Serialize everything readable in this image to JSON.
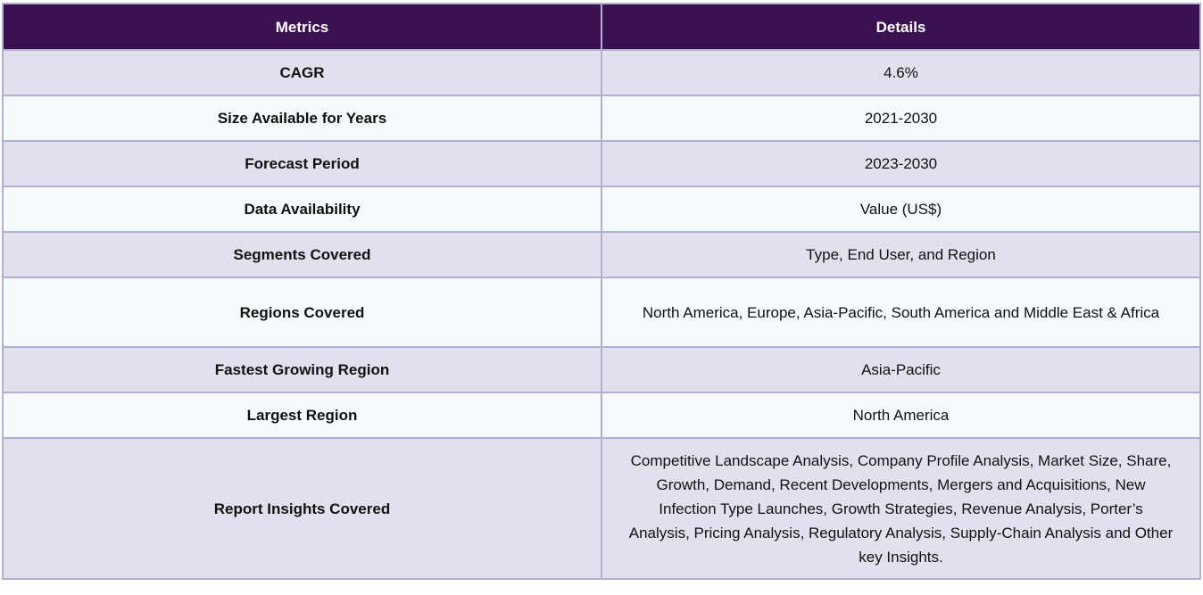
{
  "table": {
    "headers": [
      "Metrics",
      "Details"
    ],
    "rows": [
      {
        "metric": "CAGR",
        "details": "4.6%"
      },
      {
        "metric": "Size Available for Years",
        "details": "2021-2030"
      },
      {
        "metric": "Forecast Period",
        "details": "2023-2030"
      },
      {
        "metric": "Data Availability",
        "details": "Value (US$)"
      },
      {
        "metric": "Segments Covered",
        "details": "Type, End User, and Region"
      },
      {
        "metric": "Regions Covered",
        "details": "North America, Europe, Asia-Pacific, South America and Middle East & Africa"
      },
      {
        "metric": "Fastest Growing Region",
        "details": "Asia-Pacific"
      },
      {
        "metric": "Largest Region",
        "details": "North America"
      },
      {
        "metric": "Report Insights Covered",
        "details": "Competitive Landscape Analysis, Company Profile Analysis, Market Size, Share, Growth, Demand, Recent Developments, Mergers and Acquisitions, New Infection Type Launches, Growth Strategies, Revenue Analysis, Porter’s Analysis, Pricing Analysis, Regulatory Analysis, Supply-Chain Analysis and Other key Insights."
      }
    ]
  },
  "colors": {
    "header_bg": "#3a1150",
    "row_odd_bg": "#e2e0ec",
    "row_even_bg": "#f5fafc",
    "border": "#b3aed3"
  }
}
